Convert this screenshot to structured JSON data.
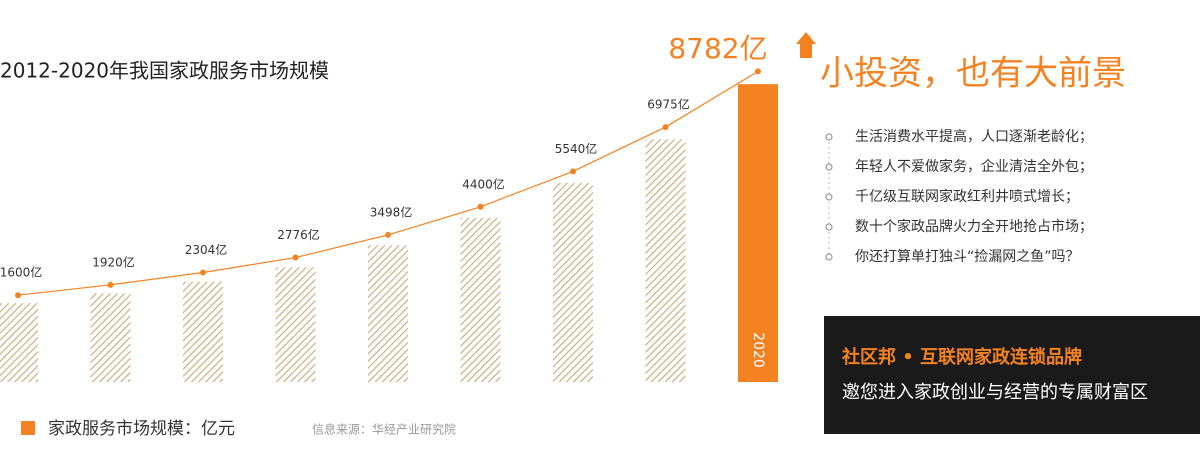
{
  "chart_data": {
    "type": "bar",
    "title": "2012-2020年我国家政服务市场规模",
    "categories": [
      null,
      null,
      null,
      null,
      null,
      null,
      null,
      null,
      "2020"
    ],
    "values": [
      1600,
      1920,
      2304,
      2776,
      3498,
      4400,
      5540,
      6975,
      8782
    ],
    "value_labels": [
      "1600亿",
      "1920亿",
      "2304亿",
      "2776亿",
      "3498亿",
      "4400亿",
      "5540亿",
      "6975亿",
      "8782亿"
    ],
    "color": "#f58220",
    "legend": "家政服务市场规模：亿元",
    "source": "信息来源：华经产业研究院"
  },
  "promo": {
    "headline": "小投资，也有大前景",
    "points": [
      "生活消费水平提高，人口逐渐老龄化；",
      "年轻人不爱做家务，企业清洁全外包；",
      "千亿级互联网家政红利井喷式增长；",
      "数十个家政品牌火力全开地抢占市场；",
      "你还打算单打独斗“捡漏网之鱼”吗？"
    ],
    "banner": {
      "brand": "社区邦 • 互联网家政连锁品牌",
      "text": "邀您进入家政创业与经营的专属财富区"
    }
  }
}
